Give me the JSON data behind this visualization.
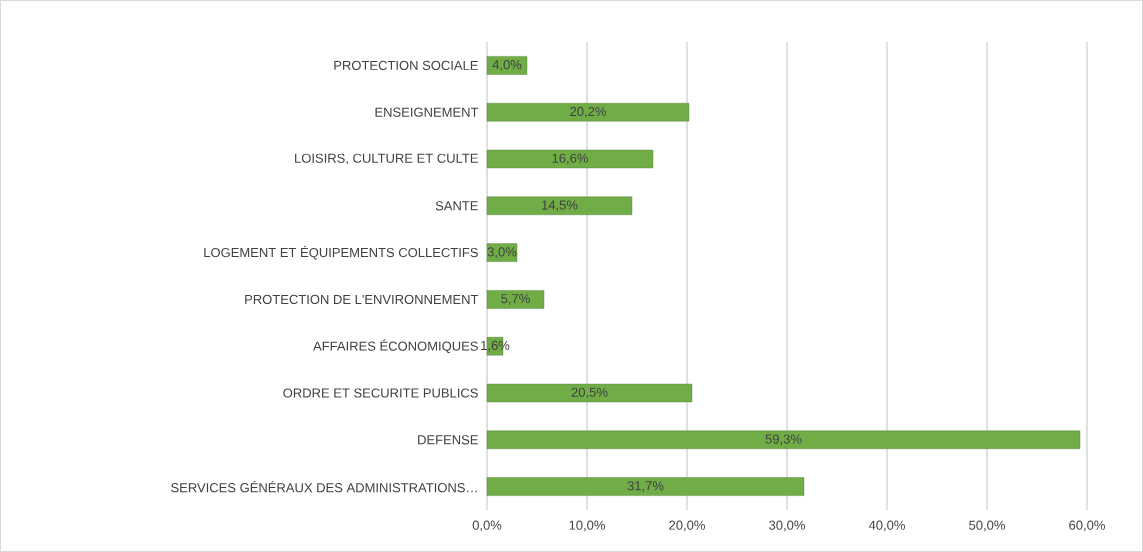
{
  "chart_data": {
    "type": "bar",
    "orientation": "horizontal",
    "categories": [
      "PROTECTION SOCIALE",
      "ENSEIGNEMENT",
      "LOISIRS, CULTURE ET CULTE",
      "SANTE",
      "LOGEMENT ET ÉQUIPEMENTS COLLECTIFS",
      "PROTECTION DE L'ENVIRONNEMENT",
      "AFFAIRES ÉCONOMIQUES",
      "ORDRE ET SECURITE PUBLICS",
      "DEFENSE",
      "SERVICES GÉNÉRAUX DES ADMINISTRATIONS…"
    ],
    "values": [
      4.0,
      20.2,
      16.6,
      14.5,
      3.0,
      5.7,
      1.6,
      20.5,
      59.3,
      31.7
    ],
    "value_labels": [
      "4,0%",
      "20,2%",
      "16,6%",
      "14,5%",
      "3,0%",
      "5,7%",
      "1,6%",
      "20,5%",
      "59,3%",
      "31,7%"
    ],
    "color": "#70ad47",
    "xlim": [
      0,
      60
    ],
    "xticks": [
      {
        "value": 0,
        "label": "0,0%"
      },
      {
        "value": 10,
        "label": "10,0%"
      },
      {
        "value": 20,
        "label": "20,0%"
      },
      {
        "value": 30,
        "label": "30,0%"
      },
      {
        "value": 40,
        "label": "40,0%"
      },
      {
        "value": 50,
        "label": "50,0%"
      },
      {
        "value": 60,
        "label": "60,0%"
      }
    ],
    "grid": "x"
  }
}
